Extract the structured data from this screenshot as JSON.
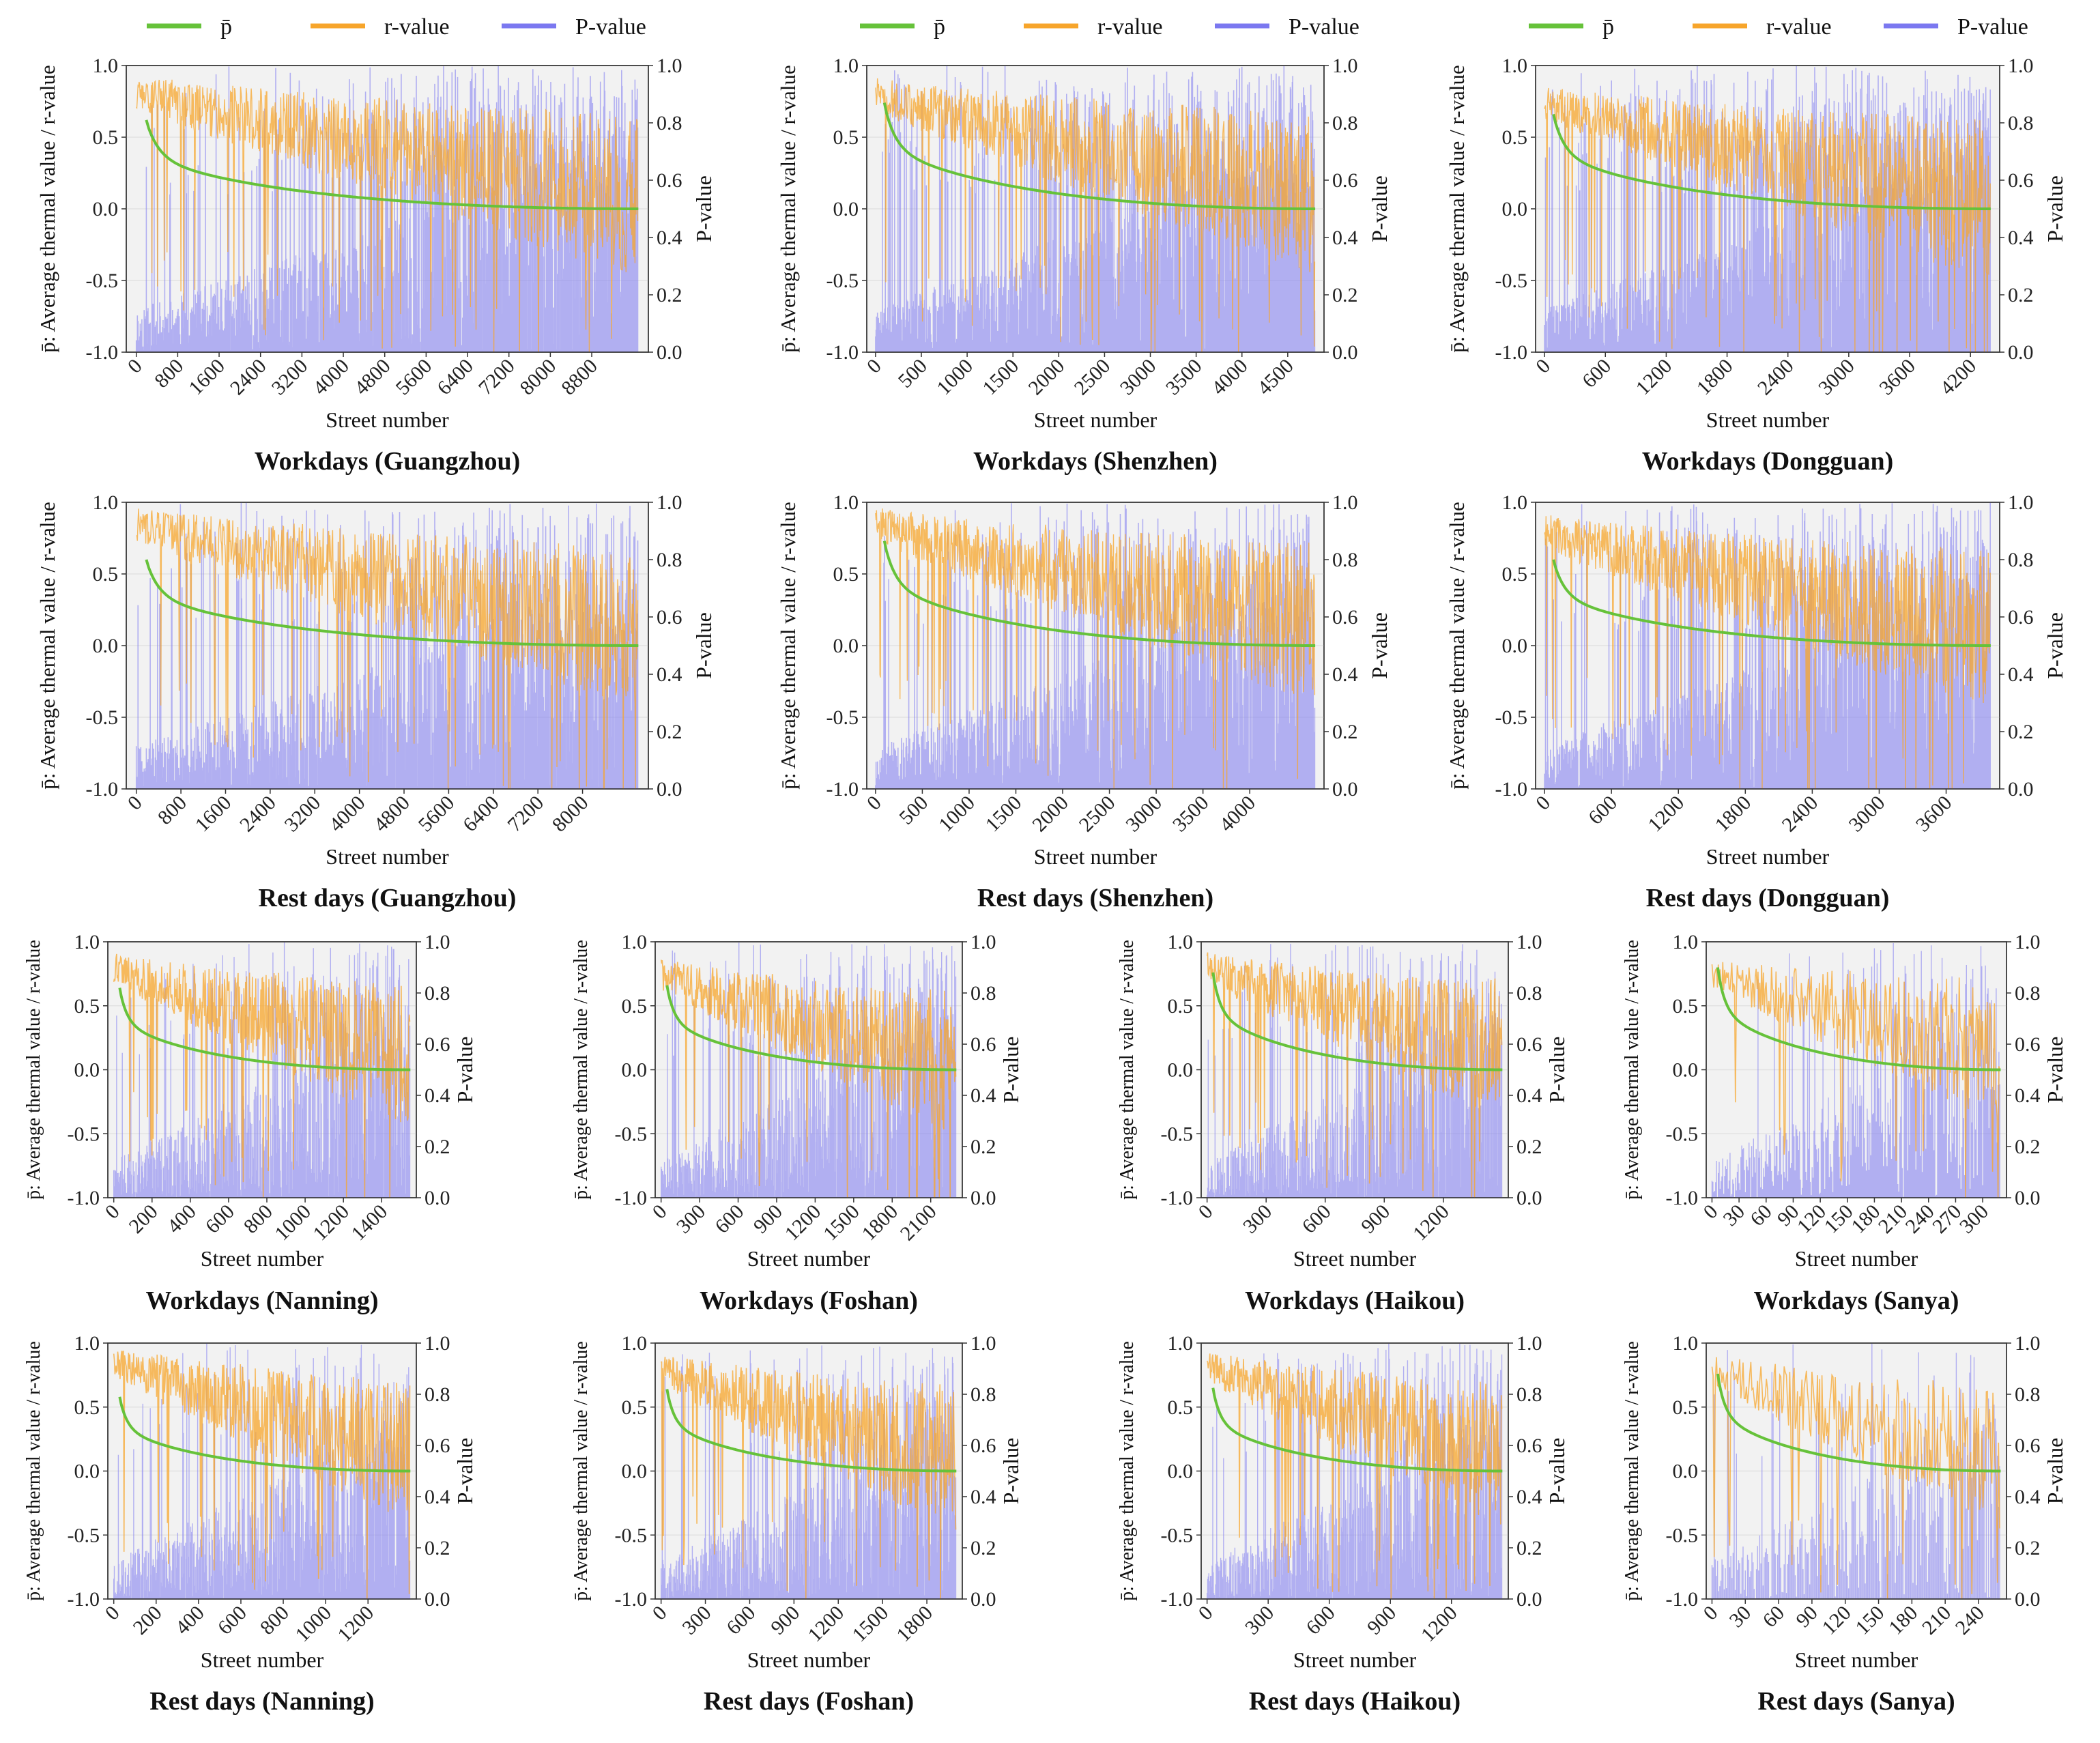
{
  "legend": {
    "p_mean": "p̄",
    "r_value": "r-value",
    "p_value": "P-value",
    "colors": {
      "p_mean": "#66c23a",
      "r_value": "#f7a52b",
      "p_value": "#7b78f0"
    }
  },
  "axis_text": {
    "y_left": "p̄: Average thermal value / r-value",
    "y_right": "P-value",
    "x": "Street number"
  },
  "chart_data": [
    {
      "type": "line",
      "title": "Workdays (Guangzhou)",
      "xlabel": "Street number",
      "ylabel": "p̄: Average thermal value / r-value",
      "y2label": "P-value",
      "n": 9700,
      "xticks": [
        0,
        800,
        1600,
        2400,
        3200,
        4000,
        4800,
        5600,
        6400,
        7200,
        8000,
        8800
      ],
      "ylim": [
        -1,
        1
      ],
      "y2lim": [
        0,
        1
      ],
      "p_start": 0.62,
      "r_start": 0.82,
      "r_end": 0.08,
      "p_density": 0.55,
      "seed": 11
    },
    {
      "type": "line",
      "title": "Workdays (Shenzhen)",
      "xlabel": "Street number",
      "ylabel": "p̄: Average thermal value / r-value",
      "y2label": "P-value",
      "n": 4800,
      "xticks": [
        0,
        500,
        1000,
        1500,
        2000,
        2500,
        3000,
        3500,
        4000,
        4500
      ],
      "ylim": [
        -1,
        1
      ],
      "y2lim": [
        0,
        1
      ],
      "p_start": 0.74,
      "r_start": 0.8,
      "r_end": 0.1,
      "p_density": 0.5,
      "seed": 23
    },
    {
      "type": "line",
      "title": "Workdays (Dongguan)",
      "xlabel": "Street number",
      "ylabel": "p̄: Average thermal value / r-value",
      "y2label": "P-value",
      "n": 4400,
      "xticks": [
        0,
        600,
        1200,
        1800,
        2400,
        3000,
        3600,
        4200
      ],
      "ylim": [
        -1,
        1
      ],
      "y2lim": [
        0,
        1
      ],
      "p_start": 0.66,
      "r_start": 0.75,
      "r_end": 0.05,
      "p_density": 0.6,
      "seed": 37
    },
    {
      "type": "line",
      "title": "Rest days (Guangzhou)",
      "xlabel": "Street number",
      "ylabel": "p̄: Average thermal value / r-value",
      "y2label": "P-value",
      "n": 9000,
      "xticks": [
        0,
        800,
        1600,
        2400,
        3200,
        4000,
        4800,
        5600,
        6400,
        7200,
        8000
      ],
      "ylim": [
        -1,
        1
      ],
      "y2lim": [
        0,
        1
      ],
      "p_start": 0.6,
      "r_start": 0.85,
      "r_end": 0.12,
      "p_density": 0.42,
      "seed": 41
    },
    {
      "type": "line",
      "title": "Rest days (Shenzhen)",
      "xlabel": "Street number",
      "ylabel": "p̄: Average thermal value / r-value",
      "y2label": "P-value",
      "n": 4700,
      "xticks": [
        0,
        500,
        1000,
        1500,
        2000,
        2500,
        3000,
        3500,
        4000
      ],
      "ylim": [
        -1,
        1
      ],
      "y2lim": [
        0,
        1
      ],
      "p_start": 0.73,
      "r_start": 0.85,
      "r_end": 0.15,
      "p_density": 0.38,
      "seed": 53
    },
    {
      "type": "line",
      "title": "Rest days (Dongguan)",
      "xlabel": "Street number",
      "ylabel": "p̄: Average thermal value / r-value",
      "y2label": "P-value",
      "n": 4000,
      "xticks": [
        0,
        600,
        1200,
        1800,
        2400,
        3000,
        3600
      ],
      "ylim": [
        -1,
        1
      ],
      "y2lim": [
        0,
        1
      ],
      "p_start": 0.6,
      "r_start": 0.8,
      "r_end": 0.1,
      "p_density": 0.45,
      "seed": 67
    },
    {
      "type": "line",
      "title": "Workdays (Nanning)",
      "xlabel": "Street number",
      "ylabel": "p̄: Average thermal value / r-value",
      "y2label": "P-value",
      "n": 1550,
      "xticks": [
        0,
        200,
        400,
        600,
        800,
        1000,
        1200,
        1400
      ],
      "ylim": [
        -1,
        1
      ],
      "y2lim": [
        0,
        1
      ],
      "p_start": 0.64,
      "r_start": 0.8,
      "r_end": 0.1,
      "p_density": 0.5,
      "seed": 71
    },
    {
      "type": "line",
      "title": "Workdays (Foshan)",
      "xlabel": "Street number",
      "ylabel": "p̄: Average thermal value / r-value",
      "y2label": "P-value",
      "n": 2300,
      "xticks": [
        0,
        300,
        600,
        900,
        1200,
        1500,
        1800,
        2100
      ],
      "ylim": [
        -1,
        1
      ],
      "y2lim": [
        0,
        1
      ],
      "p_start": 0.66,
      "r_start": 0.75,
      "r_end": 0.05,
      "p_density": 0.55,
      "seed": 83
    },
    {
      "type": "line",
      "title": "Workdays (Haikou)",
      "xlabel": "Street number",
      "ylabel": "p̄: Average thermal value / r-value",
      "y2label": "P-value",
      "n": 1500,
      "xticks": [
        0,
        300,
        600,
        900,
        1200
      ],
      "ylim": [
        -1,
        1
      ],
      "y2lim": [
        0,
        1
      ],
      "p_start": 0.76,
      "r_start": 0.8,
      "r_end": 0.15,
      "p_density": 0.45,
      "seed": 97
    },
    {
      "type": "line",
      "title": "Workdays (Sanya)",
      "xlabel": "Street number",
      "ylabel": "p̄: Average thermal value / r-value",
      "y2label": "P-value",
      "n": 320,
      "xticks": [
        0,
        30,
        60,
        90,
        120,
        150,
        180,
        210,
        240,
        270,
        300
      ],
      "ylim": [
        -1,
        1
      ],
      "y2lim": [
        0,
        1
      ],
      "p_start": 0.8,
      "r_start": 0.75,
      "r_end": 0.15,
      "p_density": 0.35,
      "seed": 101
    },
    {
      "type": "line",
      "title": "Rest days (Nanning)",
      "xlabel": "Street number",
      "ylabel": "p̄: Average thermal value / r-value",
      "y2label": "P-value",
      "n": 1400,
      "xticks": [
        0,
        200,
        400,
        600,
        800,
        1000,
        1200
      ],
      "ylim": [
        -1,
        1
      ],
      "y2lim": [
        0,
        1
      ],
      "p_start": 0.58,
      "r_start": 0.85,
      "r_end": 0.15,
      "p_density": 0.3,
      "seed": 113
    },
    {
      "type": "line",
      "title": "Rest days (Foshan)",
      "xlabel": "Street number",
      "ylabel": "p̄: Average thermal value / r-value",
      "y2label": "P-value",
      "n": 2000,
      "xticks": [
        0,
        300,
        600,
        900,
        1200,
        1500,
        1800
      ],
      "ylim": [
        -1,
        1
      ],
      "y2lim": [
        0,
        1
      ],
      "p_start": 0.64,
      "r_start": 0.8,
      "r_end": 0.1,
      "p_density": 0.38,
      "seed": 127
    },
    {
      "type": "line",
      "title": "Rest days (Haikou)",
      "xlabel": "Street number",
      "ylabel": "p̄: Average thermal value / r-value",
      "y2label": "P-value",
      "n": 1450,
      "xticks": [
        0,
        300,
        600,
        900,
        1200
      ],
      "ylim": [
        -1,
        1
      ],
      "y2lim": [
        0,
        1
      ],
      "p_start": 0.65,
      "r_start": 0.82,
      "r_end": 0.12,
      "p_density": 0.35,
      "seed": 131
    },
    {
      "type": "line",
      "title": "Rest days (Sanya)",
      "xlabel": "Street number",
      "ylabel": "p̄: Average thermal value / r-value",
      "y2label": "P-value",
      "n": 260,
      "xticks": [
        0,
        30,
        60,
        90,
        120,
        150,
        180,
        210,
        240
      ],
      "ylim": [
        -1,
        1
      ],
      "y2lim": [
        0,
        1
      ],
      "p_start": 0.76,
      "r_start": 0.8,
      "r_end": 0.1,
      "p_density": 0.3,
      "seed": 139
    }
  ]
}
